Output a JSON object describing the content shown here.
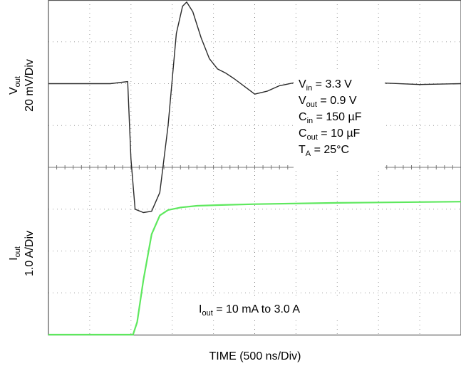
{
  "chart_data": {
    "type": "line",
    "title": "",
    "xlabel": "TIME (500 ns/Div)",
    "x_divisions": 10,
    "y_divisions": 8,
    "grid": true,
    "panels": [
      {
        "name": "vout",
        "ylabel": {
          "symbol": "V",
          "sub": "out",
          "scale": "20 mV/Div"
        },
        "color": "#2b2b2b",
        "series": [
          {
            "name": "Vout",
            "x": [
              0,
              1.5,
              1.92,
              2.0,
              2.1,
              2.3,
              2.5,
              2.7,
              2.9,
              3.1,
              3.25,
              3.35,
              3.5,
              3.7,
              3.9,
              4.1,
              4.3,
              4.5,
              4.8,
              5.0,
              5.3,
              5.6,
              6.0,
              7.0,
              8.0,
              9.0,
              10.0
            ],
            "y": [
              0,
              0,
              0.05,
              -1.8,
              -3.0,
              -3.08,
              -3.05,
              -2.6,
              -1.0,
              1.2,
              1.85,
              1.95,
              1.72,
              1.1,
              0.6,
              0.35,
              0.25,
              0.12,
              -0.1,
              -0.25,
              -0.18,
              -0.05,
              0.03,
              0.0,
              0.02,
              -0.02,
              0.0
            ]
          }
        ]
      },
      {
        "name": "iout",
        "ylabel": {
          "symbol": "I",
          "sub": "out",
          "scale": "1.0 A/Div"
        },
        "color": "#5ee85e",
        "series": [
          {
            "name": "Iout",
            "x": [
              0,
              2.05,
              2.15,
              2.3,
              2.5,
              2.7,
              2.9,
              3.2,
              3.6,
              4.2,
              5.0,
              7.0,
              10.0
            ],
            "y": [
              0,
              0.0,
              0.3,
              1.3,
              2.4,
              2.85,
              2.98,
              3.04,
              3.08,
              3.1,
              3.12,
              3.15,
              3.18
            ]
          }
        ]
      }
    ]
  },
  "conditions": [
    {
      "symbol": "V",
      "sub": "in",
      "rest": " = 3.3 V"
    },
    {
      "symbol": "V",
      "sub": "out",
      "rest": " = 0.9 V"
    },
    {
      "symbol": "C",
      "sub": "in",
      "rest": " = 150 µF"
    },
    {
      "symbol": "C",
      "sub": "out",
      "rest": " = 10 µF"
    },
    {
      "symbol": "T",
      "sub": "A",
      "rest": " = 25°C"
    }
  ],
  "current_step": {
    "symbol": "I",
    "sub": "out",
    "rest": " = 10 mA to 3.0 A"
  }
}
